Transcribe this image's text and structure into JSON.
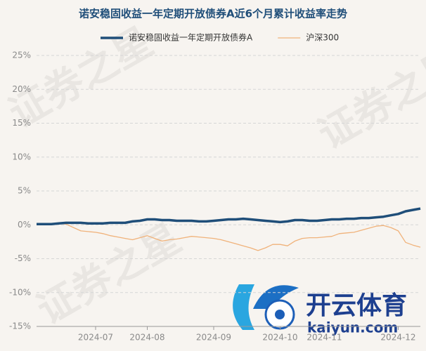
{
  "watermark": "证券之星",
  "logo_text": "开云体育",
  "logo_url": "kaiyun.com",
  "chart_data": {
    "type": "line",
    "title": "诺安稳固收益一年定期开放债券A近6个月累计收益率走势",
    "categories": [
      null,
      null,
      null,
      null,
      null,
      null,
      null,
      null,
      "2024-07",
      null,
      null,
      null,
      null,
      null,
      null,
      "2024-08",
      null,
      null,
      null,
      null,
      null,
      null,
      null,
      null,
      "2024-09",
      null,
      null,
      null,
      null,
      null,
      null,
      null,
      null,
      "2024-10",
      null,
      null,
      null,
      null,
      null,
      "2024-11",
      null,
      null,
      null,
      null,
      null,
      null,
      null,
      null,
      null,
      "2024-12",
      null,
      null,
      null
    ],
    "series": [
      {
        "name": "诺安稳固收益一年定期开放债券A",
        "color": "#1f4e79",
        "width": 3.5,
        "values": [
          0.1,
          0.1,
          0.1,
          0.2,
          0.3,
          0.3,
          0.3,
          0.2,
          0.2,
          0.2,
          0.3,
          0.3,
          0.3,
          0.5,
          0.6,
          0.8,
          0.8,
          0.7,
          0.7,
          0.6,
          0.6,
          0.6,
          0.5,
          0.5,
          0.6,
          0.7,
          0.8,
          0.8,
          0.9,
          0.8,
          0.7,
          0.6,
          0.5,
          0.4,
          0.5,
          0.7,
          0.7,
          0.6,
          0.6,
          0.7,
          0.8,
          0.8,
          0.9,
          0.9,
          1.0,
          1.0,
          1.1,
          1.2,
          1.4,
          1.6,
          2.0,
          2.2,
          2.4
        ]
      },
      {
        "name": "沪深300",
        "color": "#f0b27a",
        "width": 1.3,
        "values": [
          0.0,
          0.0,
          0.1,
          0.2,
          0.1,
          -0.4,
          -0.9,
          -1.0,
          -1.1,
          -1.3,
          -1.6,
          -1.8,
          -2.0,
          -2.2,
          -1.9,
          -1.6,
          -2.0,
          -2.4,
          -2.2,
          -2.1,
          -1.9,
          -1.7,
          -1.8,
          -1.9,
          -2.0,
          -2.2,
          -2.5,
          -2.8,
          -3.1,
          -3.4,
          -3.8,
          -3.4,
          -2.9,
          -2.9,
          -3.1,
          -2.4,
          -2.0,
          -1.9,
          -1.9,
          -1.8,
          -1.7,
          -1.3,
          -1.2,
          -1.1,
          -0.8,
          -0.5,
          -0.2,
          -0.1,
          -0.4,
          -0.9,
          -2.6,
          -3.0,
          -3.3
        ]
      }
    ],
    "ylim": [
      -15,
      25
    ],
    "yticks": [
      {
        "value": -15,
        "label": "-15%"
      },
      {
        "value": -10,
        "label": "-10%"
      },
      {
        "value": -5,
        "label": "-5%"
      },
      {
        "value": 0,
        "label": "0%"
      },
      {
        "value": 5,
        "label": "5%"
      },
      {
        "value": 10,
        "label": "10%"
      },
      {
        "value": 15,
        "label": "15%"
      },
      {
        "value": 20,
        "label": "20%"
      },
      {
        "value": 25,
        "label": "25%"
      }
    ],
    "grid": true,
    "legend": "top"
  }
}
